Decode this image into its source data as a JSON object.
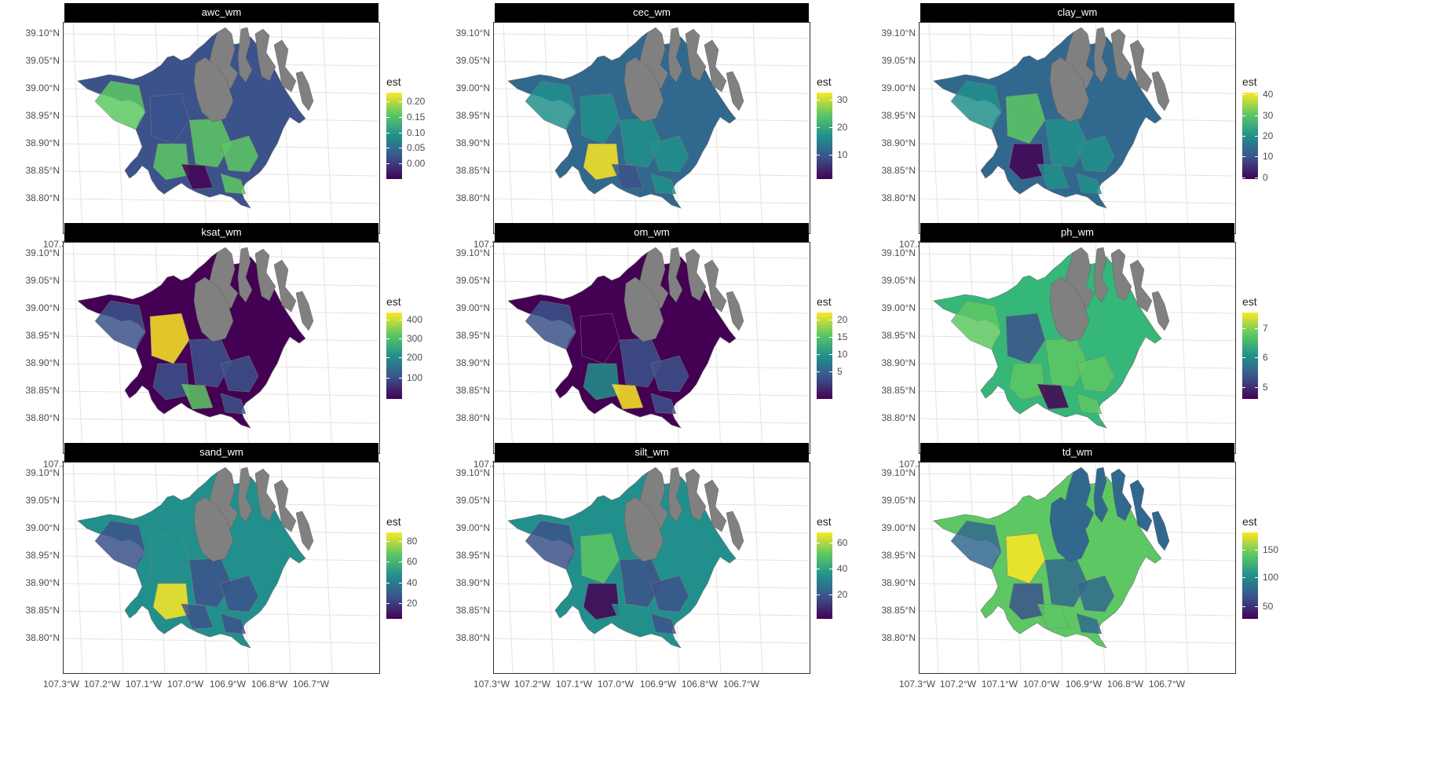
{
  "figure": {
    "y_tick_labels": [
      "39.10°N",
      "39.05°N",
      "39.00°N",
      "38.95°N",
      "38.90°N",
      "38.85°N",
      "38.80°N"
    ],
    "x_tick_labels": [
      "107.3°W",
      "107.2°W",
      "107.1°W",
      "107.0°W",
      "106.9°W",
      "106.8°W",
      "106.7°W"
    ],
    "legend_title": "est",
    "no_data_color": "#808080",
    "palette": [
      "#440154",
      "#3b528b",
      "#21908c",
      "#5dc863",
      "#fde725"
    ]
  },
  "panels": [
    {
      "title": "awc_wm",
      "legend_ticks": [
        "0.20",
        "0.15",
        "0.10",
        "0.05",
        "0.00"
      ],
      "dominant": "#3b528b",
      "secondary": "#5dc863"
    },
    {
      "title": "cec_wm",
      "legend_ticks": [
        "30",
        "20",
        "10"
      ],
      "dominant": "#31688e",
      "secondary": "#21908c"
    },
    {
      "title": "clay_wm",
      "legend_ticks": [
        "40",
        "30",
        "20",
        "10",
        "0"
      ],
      "dominant": "#31688e",
      "secondary": "#21908c"
    },
    {
      "title": "ksat_wm",
      "legend_ticks": [
        "400",
        "300",
        "200",
        "100"
      ],
      "dominant": "#440154",
      "secondary": "#3b528b"
    },
    {
      "title": "om_wm",
      "legend_ticks": [
        "20",
        "15",
        "10",
        "5"
      ],
      "dominant": "#440154",
      "secondary": "#3b528b"
    },
    {
      "title": "ph_wm",
      "legend_ticks": [
        "7",
        "6",
        "5"
      ],
      "dominant": "#35b779",
      "secondary": "#5dc863"
    },
    {
      "title": "sand_wm",
      "legend_ticks": [
        "80",
        "60",
        "40",
        "20"
      ],
      "dominant": "#21908c",
      "secondary": "#3b528b"
    },
    {
      "title": "silt_wm",
      "legend_ticks": [
        "60",
        "40",
        "20"
      ],
      "dominant": "#21908c",
      "secondary": "#3b528b"
    },
    {
      "title": "td_wm",
      "legend_ticks": [
        "150",
        "100",
        "50"
      ],
      "dominant": "#5dc863",
      "secondary": "#31688e"
    }
  ]
}
